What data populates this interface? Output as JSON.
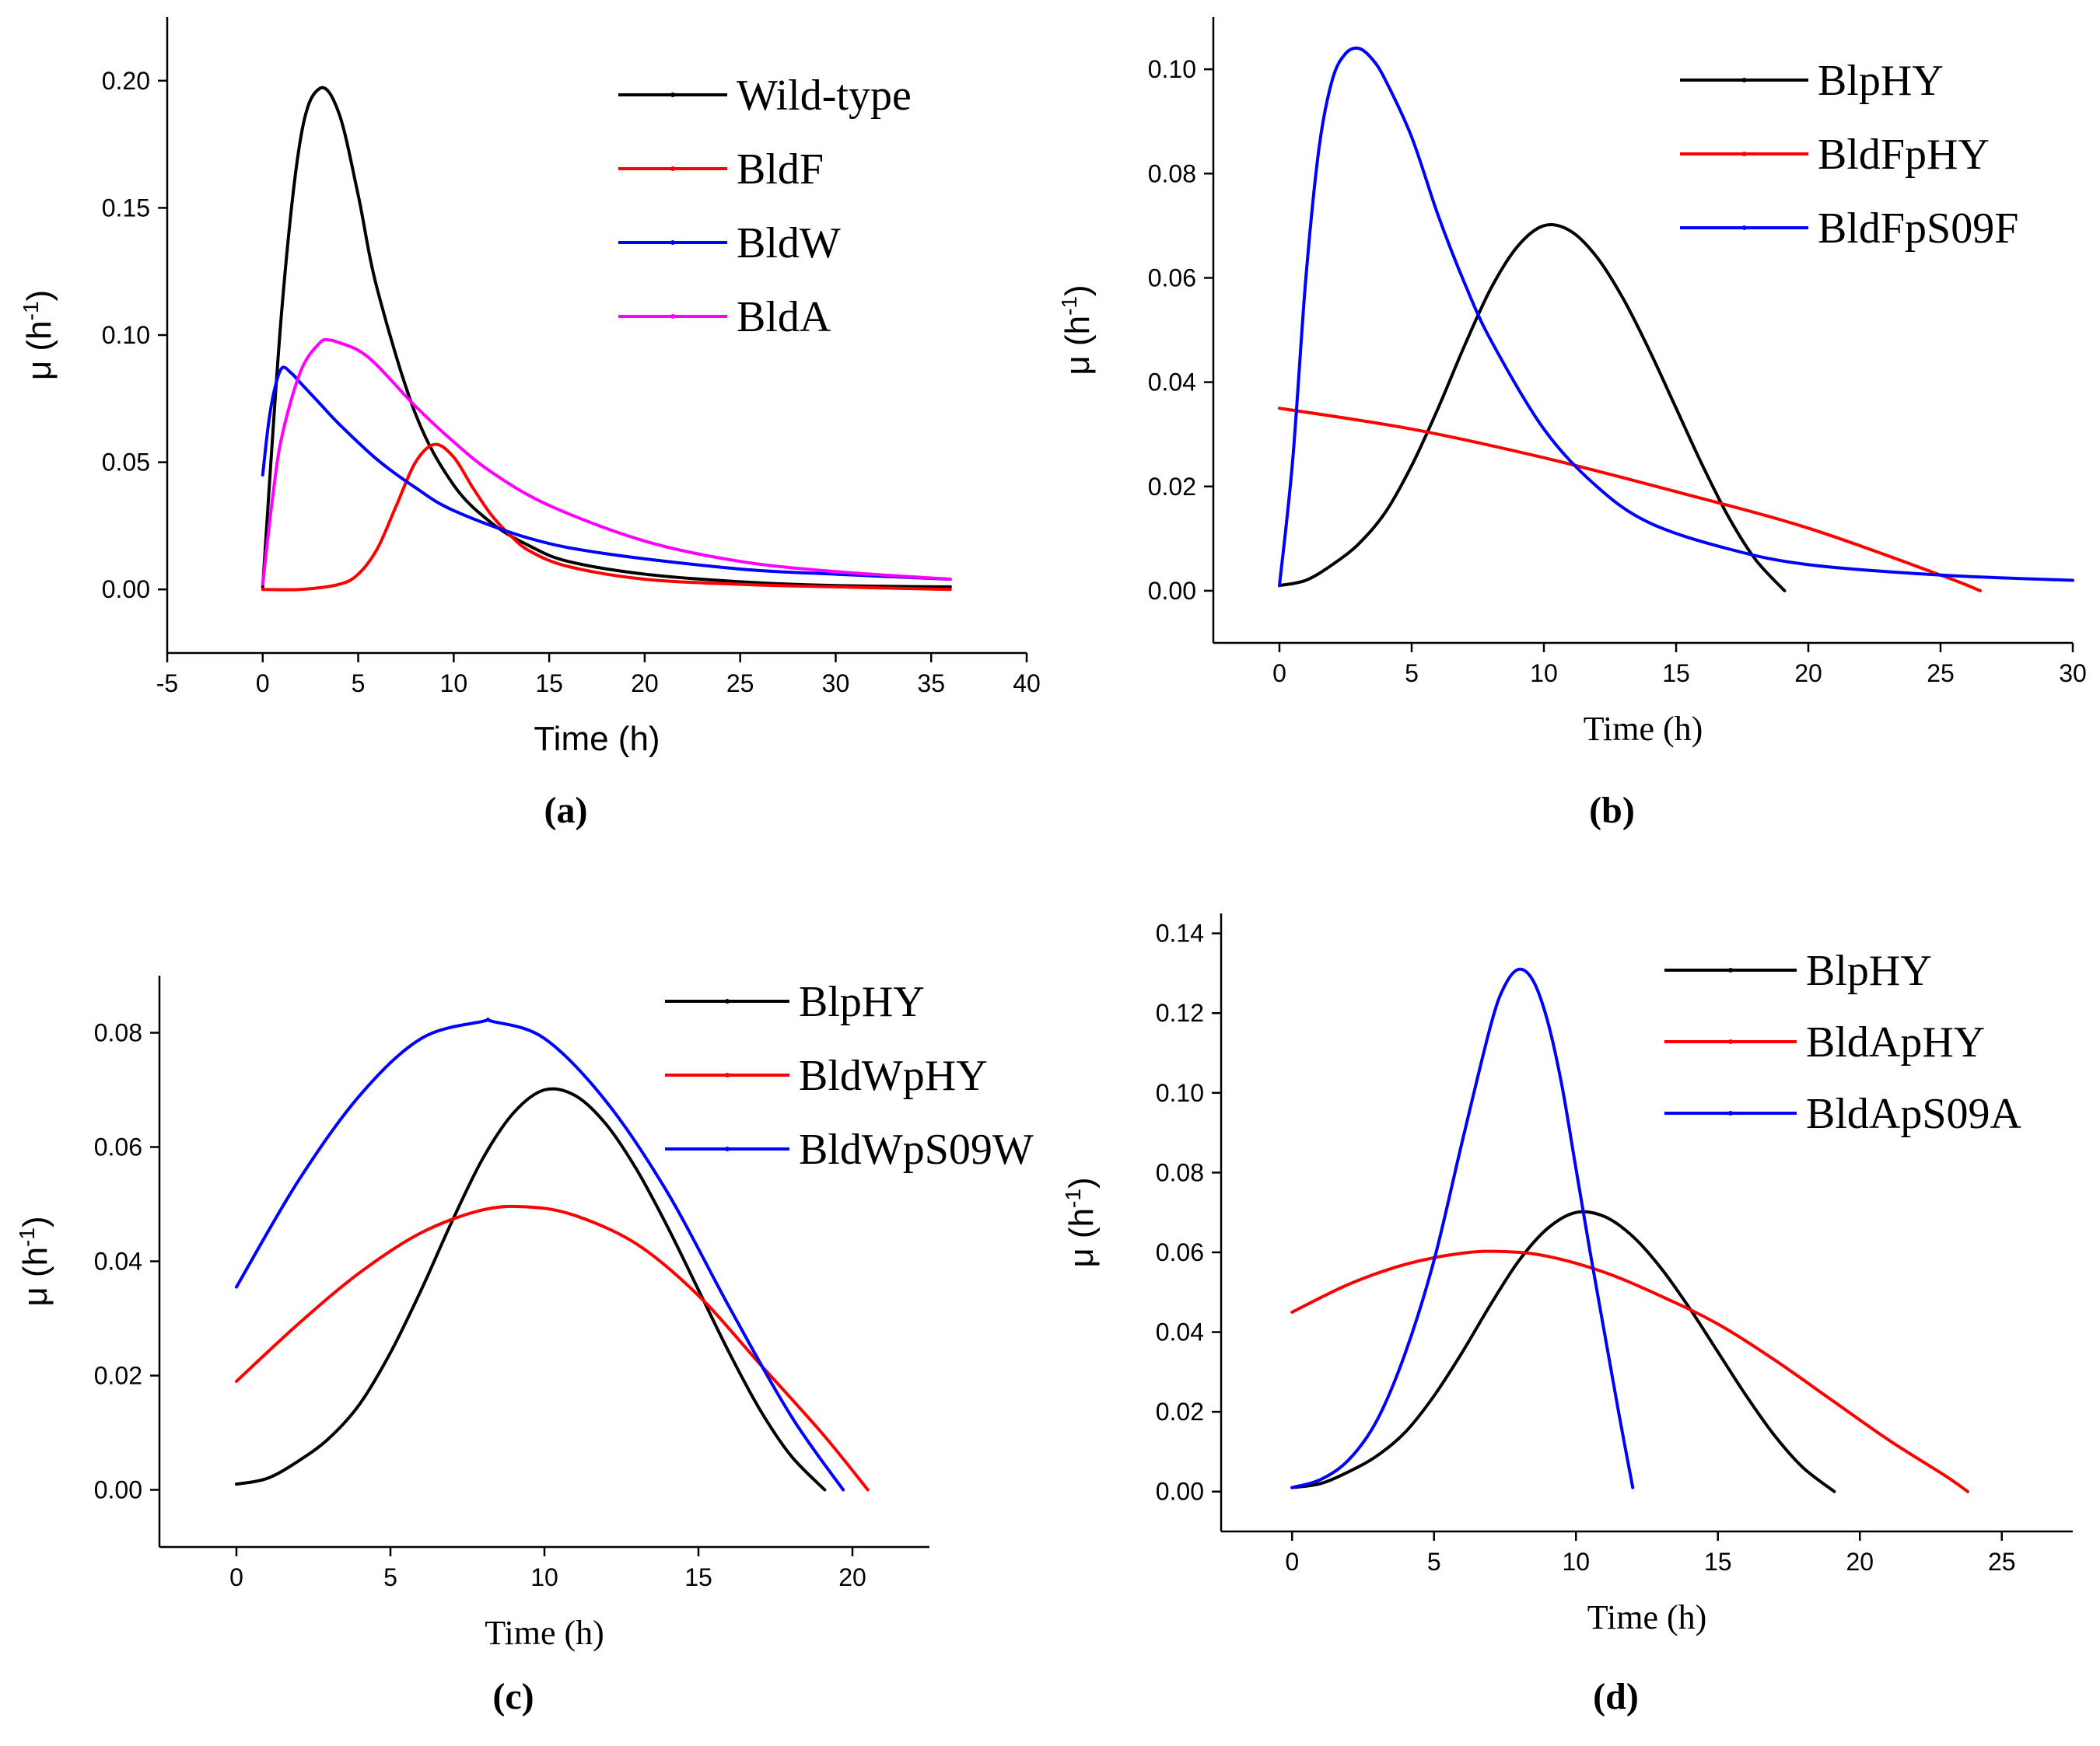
{
  "chart_data": [
    {
      "panel": "(a)",
      "type": "line",
      "xlabel": "Time (h)",
      "ylabel": "μ (h",
      "ylabel_sup": "-1",
      "ylabel_close": ")",
      "xlim": [
        -5,
        40
      ],
      "ylim": [
        -0.025,
        0.225
      ],
      "xticks": [
        -5,
        0,
        5,
        10,
        15,
        20,
        25,
        30,
        35,
        40
      ],
      "yticks": [
        0.0,
        0.05,
        0.1,
        0.15,
        0.2
      ],
      "ytick_labels": [
        "0.00",
        "0.05",
        "0.10",
        "0.15",
        "0.20"
      ],
      "series": [
        {
          "name": "Wild-type",
          "color": "#000000",
          "x": [
            0,
            1,
            2,
            3,
            4,
            5,
            6,
            8,
            10,
            12,
            14,
            16,
            20,
            25,
            30,
            36
          ],
          "y": [
            0.001,
            0.11,
            0.178,
            0.197,
            0.187,
            0.155,
            0.118,
            0.069,
            0.041,
            0.026,
            0.017,
            0.011,
            0.006,
            0.003,
            0.0015,
            0.001
          ]
        },
        {
          "name": "BldF",
          "color": "#ff0000",
          "x": [
            0,
            2,
            4,
            5,
            6,
            7,
            8,
            9,
            10,
            11,
            12,
            13,
            14,
            16,
            20,
            25,
            30,
            36
          ],
          "y": [
            0.0,
            0.0,
            0.002,
            0.006,
            0.016,
            0.033,
            0.05,
            0.057,
            0.052,
            0.04,
            0.029,
            0.021,
            0.015,
            0.009,
            0.004,
            0.002,
            0.001,
            0.0
          ]
        },
        {
          "name": "BldW",
          "color": "#0000ff",
          "x": [
            0,
            0.3,
            0.6,
            1,
            1.5,
            2,
            3,
            4,
            6,
            8,
            10,
            14,
            18,
            25,
            30,
            36
          ],
          "y": [
            0.045,
            0.065,
            0.078,
            0.087,
            0.085,
            0.081,
            0.073,
            0.065,
            0.051,
            0.04,
            0.031,
            0.02,
            0.014,
            0.008,
            0.006,
            0.004
          ]
        },
        {
          "name": "BldA",
          "color": "#ff00ff",
          "x": [
            0,
            0.5,
            1,
            2,
            3,
            3.5,
            4,
            5,
            6,
            8,
            10,
            12,
            15,
            20,
            25,
            30,
            36
          ],
          "y": [
            0.002,
            0.035,
            0.06,
            0.086,
            0.097,
            0.098,
            0.097,
            0.094,
            0.088,
            0.072,
            0.058,
            0.046,
            0.033,
            0.019,
            0.011,
            0.007,
            0.004
          ]
        }
      ]
    },
    {
      "panel": "(b)",
      "type": "line",
      "xlabel": "Time (h)",
      "ylabel": "μ (h",
      "ylabel_sup": "-1",
      "ylabel_close": ")",
      "xlim": [
        -2.5,
        30
      ],
      "ylim": [
        -0.01,
        0.11
      ],
      "xticks": [
        0,
        5,
        10,
        15,
        20,
        25,
        30
      ],
      "yticks": [
        0.0,
        0.02,
        0.04,
        0.06,
        0.08,
        0.1
      ],
      "ytick_labels": [
        "0.00",
        "0.02",
        "0.04",
        "0.06",
        "0.08",
        "0.10"
      ],
      "series": [
        {
          "name": "BlpHY",
          "color": "#000000",
          "x": [
            0,
            1,
            2,
            3,
            4,
            5,
            6,
            7,
            8,
            9,
            10,
            11,
            12,
            13,
            14,
            15,
            16,
            17,
            18,
            19.1
          ],
          "y": [
            0.001,
            0.002,
            0.005,
            0.009,
            0.015,
            0.024,
            0.035,
            0.047,
            0.058,
            0.066,
            0.07,
            0.069,
            0.064,
            0.056,
            0.046,
            0.035,
            0.024,
            0.014,
            0.006,
            0.0
          ]
        },
        {
          "name": "BldFpHY",
          "color": "#ff0000",
          "x": [
            0,
            5,
            10,
            15,
            20,
            25,
            26.5
          ],
          "y": [
            0.035,
            0.031,
            0.0255,
            0.019,
            0.012,
            0.003,
            0.0
          ]
        },
        {
          "name": "BldFpS09F",
          "color": "#0000ff",
          "x": [
            0,
            0.5,
            1,
            1.5,
            2,
            2.5,
            3,
            3.5,
            4,
            5,
            6,
            7,
            8,
            10,
            12,
            14,
            17,
            20,
            25,
            30
          ],
          "y": [
            0.001,
            0.025,
            0.06,
            0.085,
            0.098,
            0.103,
            0.104,
            0.102,
            0.098,
            0.087,
            0.072,
            0.059,
            0.048,
            0.031,
            0.02,
            0.013,
            0.008,
            0.005,
            0.003,
            0.002
          ]
        }
      ]
    },
    {
      "panel": "(c)",
      "type": "line",
      "xlabel": "Time (h)",
      "ylabel": "μ (h",
      "ylabel_sup": "-1",
      "ylabel_close": ")",
      "xlim": [
        -2.5,
        22.5
      ],
      "ylim": [
        -0.01,
        0.09
      ],
      "xticks": [
        0,
        5,
        10,
        15,
        20
      ],
      "yticks": [
        0.0,
        0.02,
        0.04,
        0.06,
        0.08
      ],
      "ytick_labels": [
        "0.00",
        "0.02",
        "0.04",
        "0.06",
        "0.08"
      ],
      "series": [
        {
          "name": "BlpHY",
          "color": "#000000",
          "x": [
            0,
            1,
            2,
            3,
            4,
            5,
            6,
            7,
            8,
            9,
            10,
            11,
            12,
            13,
            14,
            15,
            16,
            17,
            18,
            19.1
          ],
          "y": [
            0.001,
            0.002,
            0.005,
            0.009,
            0.015,
            0.024,
            0.035,
            0.047,
            0.058,
            0.066,
            0.07,
            0.069,
            0.064,
            0.056,
            0.046,
            0.035,
            0.024,
            0.014,
            0.006,
            0.0
          ]
        },
        {
          "name": "BldWpHY",
          "color": "#ff0000",
          "x": [
            0,
            2,
            4,
            6,
            8,
            9.5,
            11,
            13,
            15,
            17,
            19,
            20.5
          ],
          "y": [
            0.019,
            0.029,
            0.038,
            0.045,
            0.049,
            0.0495,
            0.048,
            0.043,
            0.034,
            0.022,
            0.01,
            0.0
          ]
        },
        {
          "name": "BldWpS09W",
          "color": "#0000ff",
          "x": [
            0,
            2,
            4,
            6,
            8,
            8.3,
            10,
            12,
            14,
            16,
            18,
            19.7
          ],
          "y": [
            0.0355,
            0.054,
            0.069,
            0.079,
            0.082,
            0.082,
            0.079,
            0.068,
            0.052,
            0.032,
            0.013,
            0.0
          ]
        }
      ]
    },
    {
      "panel": "(d)",
      "type": "line",
      "xlabel": "Time (h)",
      "ylabel": "μ (h",
      "ylabel_sup": "-1",
      "ylabel_close": ")",
      "xlim": [
        -2.5,
        27.5
      ],
      "ylim": [
        -0.01,
        0.145
      ],
      "xticks": [
        0,
        5,
        10,
        15,
        20,
        25
      ],
      "yticks": [
        0.0,
        0.02,
        0.04,
        0.06,
        0.08,
        0.1,
        0.12,
        0.14
      ],
      "ytick_labels": [
        "0.00",
        "0.02",
        "0.04",
        "0.06",
        "0.08",
        "0.10",
        "0.12",
        "0.14"
      ],
      "series": [
        {
          "name": "BlpHY",
          "color": "#000000",
          "x": [
            0,
            1,
            2,
            3,
            4,
            5,
            6,
            7,
            8,
            9,
            10,
            11,
            12,
            13,
            14,
            15,
            16,
            17,
            18,
            19.1
          ],
          "y": [
            0.001,
            0.002,
            0.005,
            0.009,
            0.015,
            0.024,
            0.035,
            0.047,
            0.058,
            0.066,
            0.07,
            0.069,
            0.064,
            0.056,
            0.046,
            0.035,
            0.024,
            0.014,
            0.006,
            0.0
          ]
        },
        {
          "name": "BldApHY",
          "color": "#ff0000",
          "x": [
            0,
            2,
            4,
            6,
            7.5,
            9,
            11,
            13,
            15,
            17,
            19,
            21,
            23,
            23.8
          ],
          "y": [
            0.045,
            0.052,
            0.057,
            0.0598,
            0.0602,
            0.059,
            0.055,
            0.049,
            0.042,
            0.033,
            0.023,
            0.013,
            0.004,
            0.0
          ]
        },
        {
          "name": "BldApS09A",
          "color": "#0000ff",
          "x": [
            0,
            1,
            2,
            3,
            4,
            5,
            6,
            7,
            7.5,
            8,
            8.5,
            9,
            9.5,
            10,
            10.5,
            11,
            11.5,
            12
          ],
          "y": [
            0.001,
            0.003,
            0.008,
            0.018,
            0.035,
            0.058,
            0.088,
            0.117,
            0.127,
            0.131,
            0.128,
            0.118,
            0.102,
            0.081,
            0.06,
            0.04,
            0.02,
            0.001
          ]
        }
      ]
    }
  ]
}
